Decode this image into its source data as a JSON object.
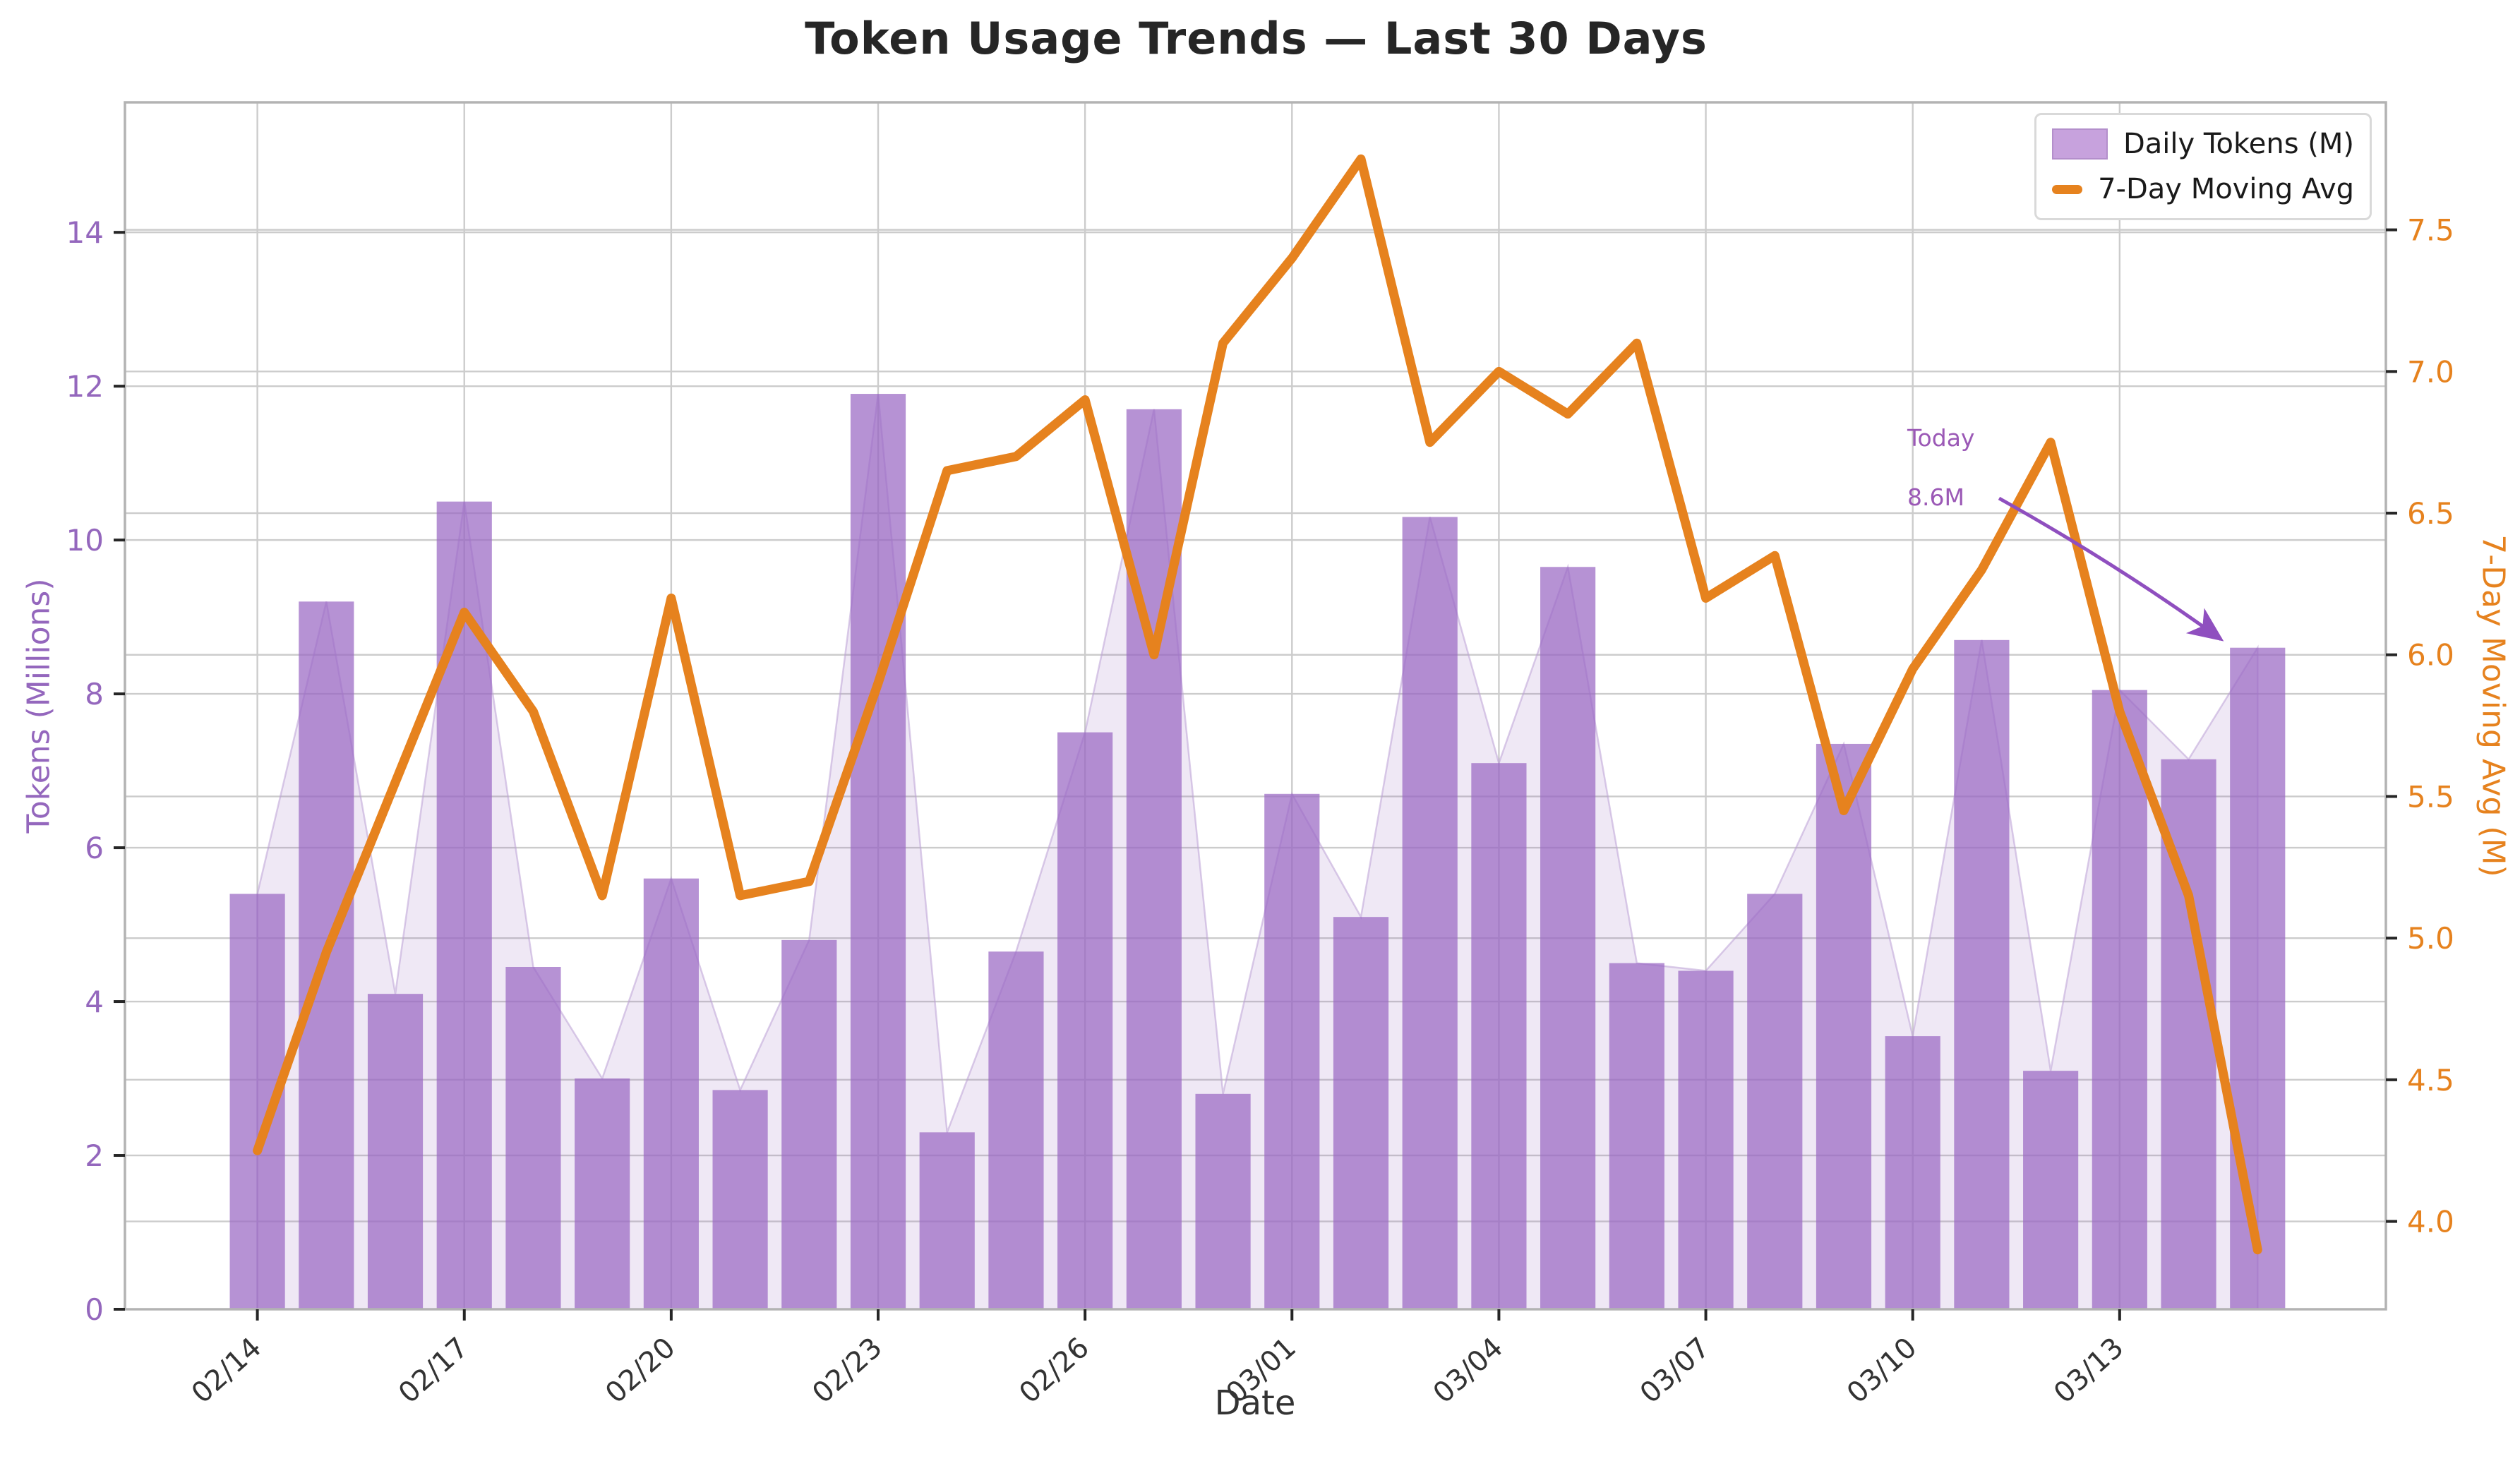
{
  "title": "Token Usage Trends — Last 30 Days",
  "xlabel": "Date",
  "annotation": {
    "line1": "Today",
    "line2": "8.6M",
    "target_index": 29,
    "target_value": 8.6
  },
  "legend": {
    "bar_label": "Daily Tokens (M)",
    "line_label": "7-Day Moving Avg"
  },
  "colors": {
    "bar": "#9a68c4",
    "bar_legend": "#c7a2dd",
    "area": "#9467bd",
    "line": "#e6821e",
    "left_axis": "#9467bd",
    "right_axis": "#e6821e",
    "grid": "#cccccc",
    "spine": "#b3b3b3",
    "xtick": "#333333",
    "annotation": "#9b59b6",
    "arrow": "#8f4fbf",
    "title": "#262626"
  },
  "chart_data": {
    "type": "bar",
    "subtype": "bar-line-combo",
    "categories": [
      "02/14",
      "02/15",
      "02/16",
      "02/17",
      "02/18",
      "02/19",
      "02/20",
      "02/21",
      "02/22",
      "02/23",
      "02/24",
      "02/25",
      "02/26",
      "02/27",
      "02/28",
      "03/01",
      "03/02",
      "03/03",
      "03/04",
      "03/05",
      "03/06",
      "03/07",
      "03/08",
      "03/09",
      "03/10",
      "03/11",
      "03/12",
      "03/13",
      "03/14",
      "03/15"
    ],
    "series": [
      {
        "name": "Daily Tokens (M)",
        "type": "bar",
        "axis": "left",
        "values": [
          5.4,
          9.2,
          4.1,
          10.5,
          4.45,
          3.0,
          5.6,
          2.85,
          4.8,
          11.9,
          2.3,
          4.65,
          7.5,
          11.7,
          2.8,
          6.7,
          5.1,
          10.3,
          7.1,
          9.65,
          4.5,
          4.4,
          5.4,
          7.35,
          3.55,
          8.7,
          3.1,
          8.05,
          7.15,
          8.6
        ]
      },
      {
        "name": "7-Day Moving Avg",
        "type": "line",
        "axis": "right",
        "values": [
          4.25,
          4.95,
          5.55,
          6.15,
          5.8,
          5.15,
          6.2,
          5.15,
          5.2,
          5.9,
          6.65,
          6.7,
          6.9,
          6.0,
          7.1,
          7.4,
          7.75,
          6.75,
          7.0,
          6.85,
          7.1,
          6.2,
          6.35,
          5.45,
          5.95,
          6.3,
          6.75,
          5.8,
          5.15,
          3.9
        ]
      }
    ],
    "x_tick_indices": [
      0,
      3,
      6,
      9,
      12,
      15,
      18,
      21,
      24,
      27
    ],
    "x_tick_labels": [
      "02/14",
      "02/17",
      "02/20",
      "02/23",
      "02/26",
      "03/01",
      "03/04",
      "03/07",
      "03/10",
      "03/13"
    ],
    "left_axis": {
      "label": "Tokens (Millions)",
      "ticks": [
        0,
        2,
        4,
        6,
        8,
        10,
        12,
        14
      ],
      "range": [
        0,
        15.69
      ]
    },
    "right_axis": {
      "label": "7-Day Moving Avg (M)",
      "ticks": [
        4.0,
        4.5,
        5.0,
        5.5,
        6.0,
        6.5,
        7.0,
        7.5
      ],
      "range": [
        3.69,
        7.95
      ]
    },
    "x_index_range": [
      -1.92,
      30.86
    ],
    "grid": true,
    "legend_position": "upper right"
  }
}
